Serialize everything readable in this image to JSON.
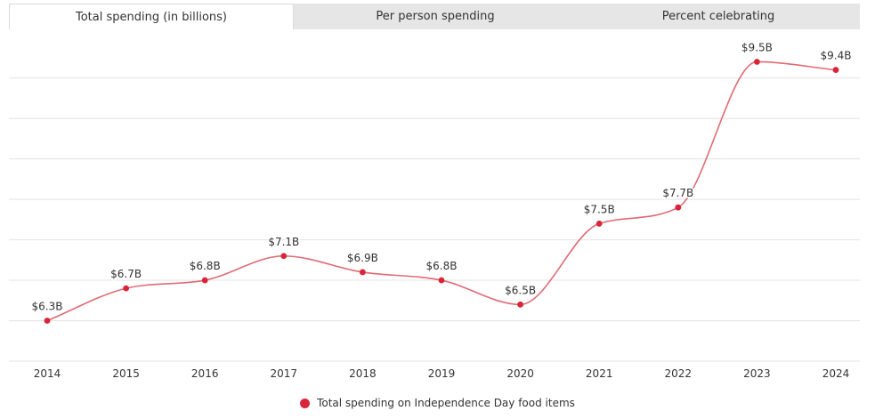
{
  "tabs": [
    {
      "label": "Total spending (in billions)",
      "active": true
    },
    {
      "label": "Per person spending",
      "active": false
    },
    {
      "label": "Percent celebrating",
      "active": false
    }
  ],
  "colors": {
    "series": "#d9253a",
    "line": "#e06a74",
    "grid": "#e3e3e3"
  },
  "chart_data": {
    "type": "line",
    "title": "",
    "xlabel": "",
    "ylabel": "",
    "categories": [
      "2014",
      "2015",
      "2016",
      "2017",
      "2018",
      "2019",
      "2020",
      "2021",
      "2022",
      "2023",
      "2024"
    ],
    "series": [
      {
        "name": "Total spending on Independence Day food items",
        "values": [
          6.3,
          6.7,
          6.8,
          7.1,
          6.9,
          6.8,
          6.5,
          7.5,
          7.7,
          9.5,
          9.4
        ],
        "labels": [
          "$6.3B",
          "$6.7B",
          "$6.8B",
          "$7.1B",
          "$6.9B",
          "$6.8B",
          "$6.5B",
          "$7.5B",
          "$7.7B",
          "$9.5B",
          "$9.4B"
        ]
      }
    ],
    "ylim": [
      5.8,
      10.0
    ],
    "grid": true,
    "legend": "bottom"
  }
}
